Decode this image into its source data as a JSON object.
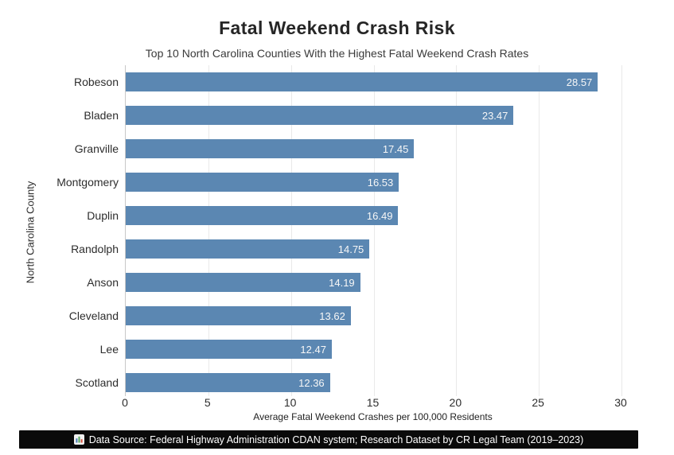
{
  "chart_data": {
    "type": "bar",
    "orientation": "horizontal",
    "title": "Fatal Weekend Crash Risk",
    "subtitle": "Top 10 North Carolina Counties With the Highest Fatal Weekend Crash Rates",
    "categories": [
      "Robeson",
      "Bladen",
      "Granville",
      "Montgomery",
      "Duplin",
      "Randolph",
      "Anson",
      "Cleveland",
      "Lee",
      "Scotland"
    ],
    "values": [
      28.57,
      23.47,
      17.45,
      16.53,
      16.49,
      14.75,
      14.19,
      13.62,
      12.47,
      12.36
    ],
    "value_labels": [
      "28.57",
      "23.47",
      "17.45",
      "16.53",
      "16.49",
      "14.75",
      "14.19",
      "13.62",
      "12.47",
      "12.36"
    ],
    "xlabel": "Average Fatal Weekend Crashes per 100,000 Residents",
    "ylabel": "North Carolina County",
    "xticks": [
      0,
      5,
      10,
      15,
      20,
      25,
      30
    ],
    "xlim": [
      0,
      30
    ],
    "grid": "vertical-light",
    "legend": "none",
    "bar_color": "#5b87b2",
    "value_label_color": "#ffffff",
    "gridline_color": "#e9e9e9"
  },
  "footer": {
    "icon": "bar-chart-icon",
    "text": "Data Source: Federal Highway Administration CDAN system; Research Dataset by CR Legal Team (2019–2023)",
    "background": "#0a0a0a",
    "text_color": "#ffffff"
  }
}
